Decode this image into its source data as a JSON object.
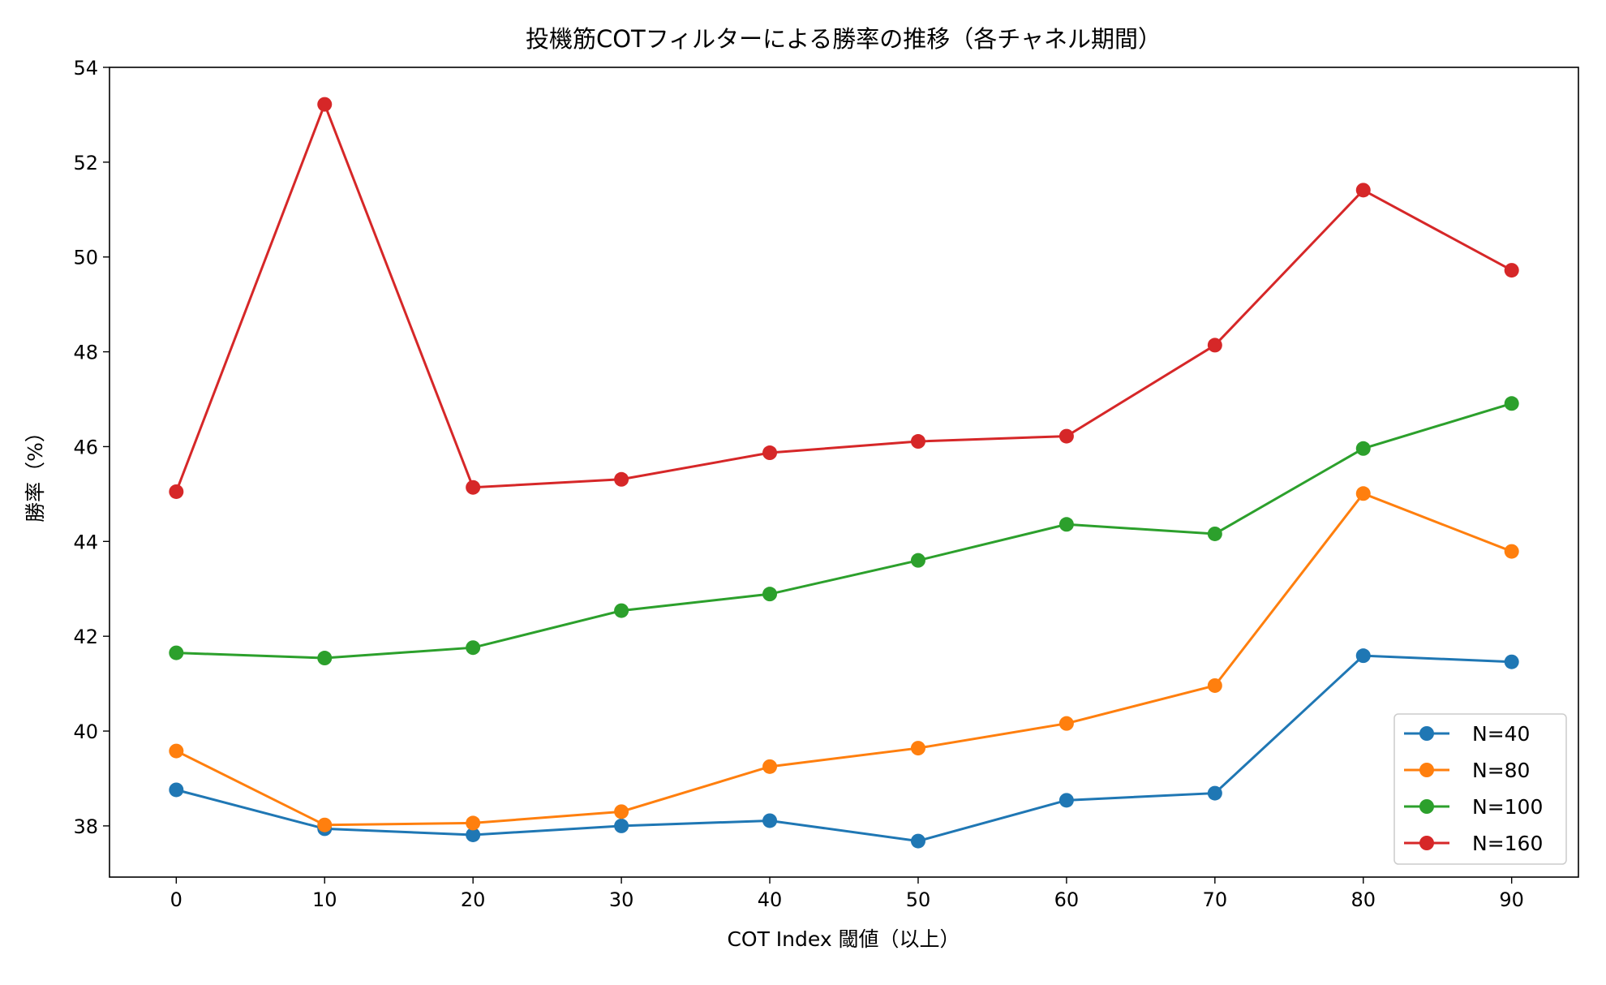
{
  "chart_data": {
    "type": "line",
    "title": "投機筋COTフィルターによる勝率の推移（各チャネル期間）",
    "xlabel": "COT Index 閾値（以上）",
    "ylabel": "勝率（%）",
    "x": [
      0,
      10,
      20,
      30,
      40,
      50,
      60,
      70,
      80,
      90
    ],
    "xlim": [
      -4.5,
      94.5
    ],
    "ylim": [
      36.92,
      54
    ],
    "xticks": [
      "0",
      "10",
      "20",
      "30",
      "40",
      "50",
      "60",
      "70",
      "80",
      "90"
    ],
    "yticks": [
      "38",
      "40",
      "42",
      "44",
      "46",
      "48",
      "50",
      "52",
      "54"
    ],
    "grid": false,
    "legend_position": "bottom-right",
    "series": [
      {
        "name": "N=40",
        "color": "#1f77b4",
        "values": [
          38.76,
          37.94,
          37.81,
          38.0,
          38.11,
          37.68,
          38.54,
          38.69,
          41.59,
          41.46
        ]
      },
      {
        "name": "N=80",
        "color": "#ff7f0e",
        "values": [
          39.58,
          38.02,
          38.06,
          38.3,
          39.25,
          39.64,
          40.16,
          40.96,
          45.01,
          43.79
        ]
      },
      {
        "name": "N=100",
        "color": "#2ca02c",
        "values": [
          41.65,
          41.54,
          41.76,
          42.54,
          42.89,
          43.6,
          44.36,
          44.16,
          45.96,
          46.91
        ]
      },
      {
        "name": "N=160",
        "color": "#d62728",
        "values": [
          45.05,
          53.22,
          45.14,
          45.31,
          45.87,
          46.11,
          46.22,
          48.14,
          51.41,
          49.72
        ]
      }
    ]
  }
}
